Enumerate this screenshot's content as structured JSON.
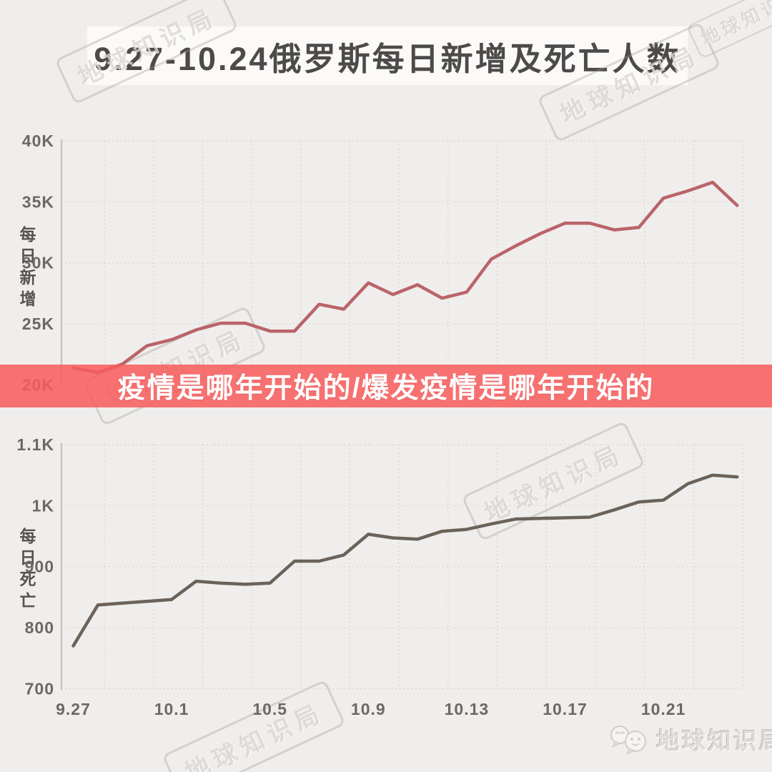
{
  "title": {
    "text": "9.27-10.24俄罗斯每日新增及死亡人数"
  },
  "overlay_banner": {
    "text": "疫情是哪年开始的/爆发疫情是哪年开始的",
    "color": "#f85c5c",
    "opacity": 0.86
  },
  "watermark": {
    "text": "地球知识局"
  },
  "logo": {
    "text": "地球知识局",
    "icon": "earth-chat-bubbles-icon"
  },
  "chart_data": [
    {
      "id": "daily-new-cases",
      "type": "line",
      "title": "每日新增",
      "ylabel": "每日新增",
      "xlabel": "",
      "grid": "dotted",
      "legend": "none",
      "line_color": "#ba646a",
      "ylim": [
        20000,
        40000
      ],
      "y_ticks": [
        {
          "label": "40K",
          "value": 40000
        },
        {
          "label": "35K",
          "value": 35000
        },
        {
          "label": "30K",
          "value": 30000
        },
        {
          "label": "25K",
          "value": 25000
        },
        {
          "label": "20K",
          "value": 20000
        }
      ],
      "x": [
        "9.27",
        "9.28",
        "9.29",
        "9.30",
        "10.1",
        "10.2",
        "10.3",
        "10.4",
        "10.5",
        "10.6",
        "10.7",
        "10.8",
        "10.9",
        "10.10",
        "10.11",
        "10.12",
        "10.13",
        "10.14",
        "10.15",
        "10.16",
        "10.17",
        "10.18",
        "10.19",
        "10.20",
        "10.21",
        "10.22",
        "10.23",
        "10.24"
      ],
      "values": [
        21400,
        21000,
        21700,
        23200,
        23700,
        24500,
        25050,
        25050,
        24400,
        24400,
        26600,
        26200,
        28350,
        27400,
        28200,
        27100,
        27600,
        30300,
        31400,
        32400,
        33250,
        33250,
        32700,
        32900,
        35300,
        35900,
        36600,
        34700
      ],
      "x_ticks": [
        {
          "label": "9.27",
          "index": 0
        },
        {
          "label": "10.1",
          "index": 4
        },
        {
          "label": "10.5",
          "index": 8
        },
        {
          "label": "10.9",
          "index": 12
        },
        {
          "label": "10.13",
          "index": 16
        },
        {
          "label": "10.17",
          "index": 20
        },
        {
          "label": "10.21",
          "index": 24
        }
      ],
      "show_x_tick_labels": false
    },
    {
      "id": "daily-deaths",
      "type": "line",
      "title": "每日死亡",
      "ylabel": "每日死亡",
      "xlabel": "",
      "grid": "dotted",
      "legend": "none",
      "line_color": "#6b6259",
      "ylim": [
        700,
        1100
      ],
      "y_ticks": [
        {
          "label": "1.1K",
          "value": 1100
        },
        {
          "label": "1K",
          "value": 1000
        },
        {
          "label": "900",
          "value": 900
        },
        {
          "label": "800",
          "value": 800
        },
        {
          "label": "700",
          "value": 700
        }
      ],
      "x": [
        "9.27",
        "9.28",
        "9.29",
        "9.30",
        "10.1",
        "10.2",
        "10.3",
        "10.4",
        "10.5",
        "10.6",
        "10.7",
        "10.8",
        "10.9",
        "10.10",
        "10.11",
        "10.12",
        "10.13",
        "10.14",
        "10.15",
        "10.16",
        "10.17",
        "10.18",
        "10.19",
        "10.20",
        "10.21",
        "10.22",
        "10.23",
        "10.24"
      ],
      "values": [
        770,
        837,
        840,
        843,
        846,
        876,
        873,
        871,
        873,
        909,
        909,
        919,
        953,
        947,
        945,
        958,
        961,
        970,
        978,
        979,
        980,
        981,
        993,
        1006,
        1009,
        1036,
        1050,
        1047
      ],
      "x_ticks": [
        {
          "label": "9.27",
          "index": 0
        },
        {
          "label": "10.1",
          "index": 4
        },
        {
          "label": "10.5",
          "index": 8
        },
        {
          "label": "10.9",
          "index": 12
        },
        {
          "label": "10.13",
          "index": 16
        },
        {
          "label": "10.17",
          "index": 20
        },
        {
          "label": "10.21",
          "index": 24
        }
      ],
      "show_x_tick_labels": true
    }
  ]
}
